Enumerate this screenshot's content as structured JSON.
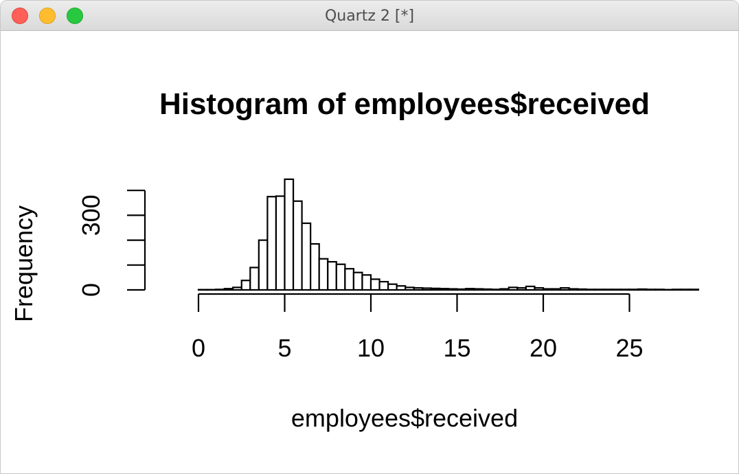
{
  "window": {
    "title": "Quartz 2 [*]",
    "buttons": [
      "close",
      "minimize",
      "zoom"
    ]
  },
  "chart_data": {
    "type": "bar",
    "title": "Histogram of employees$received",
    "xlabel": "employees$received",
    "ylabel": "Frequency",
    "x_ticks": [
      0,
      5,
      10,
      15,
      20,
      25
    ],
    "y_ticks": [
      0,
      300
    ],
    "xlim": [
      -2,
      26
    ],
    "ylim": [
      0,
      400
    ],
    "bin_width": 0.5,
    "bins_start": -2,
    "values": [
      0,
      0,
      0,
      0,
      1,
      1,
      2,
      5,
      10,
      38,
      90,
      200,
      375,
      377,
      445,
      357,
      268,
      185,
      125,
      113,
      103,
      85,
      70,
      60,
      43,
      33,
      23,
      16,
      10,
      8,
      7,
      6,
      5,
      4,
      3,
      5,
      4,
      3,
      2,
      4,
      10,
      8,
      14,
      8,
      4,
      4,
      8,
      4,
      3,
      2,
      2,
      2,
      2,
      2,
      2,
      3,
      2,
      2,
      1,
      2,
      2,
      2
    ],
    "grid": false,
    "legend": "none",
    "colors": {
      "bar_fill": "#ffffff",
      "bar_stroke": "#000000"
    }
  }
}
